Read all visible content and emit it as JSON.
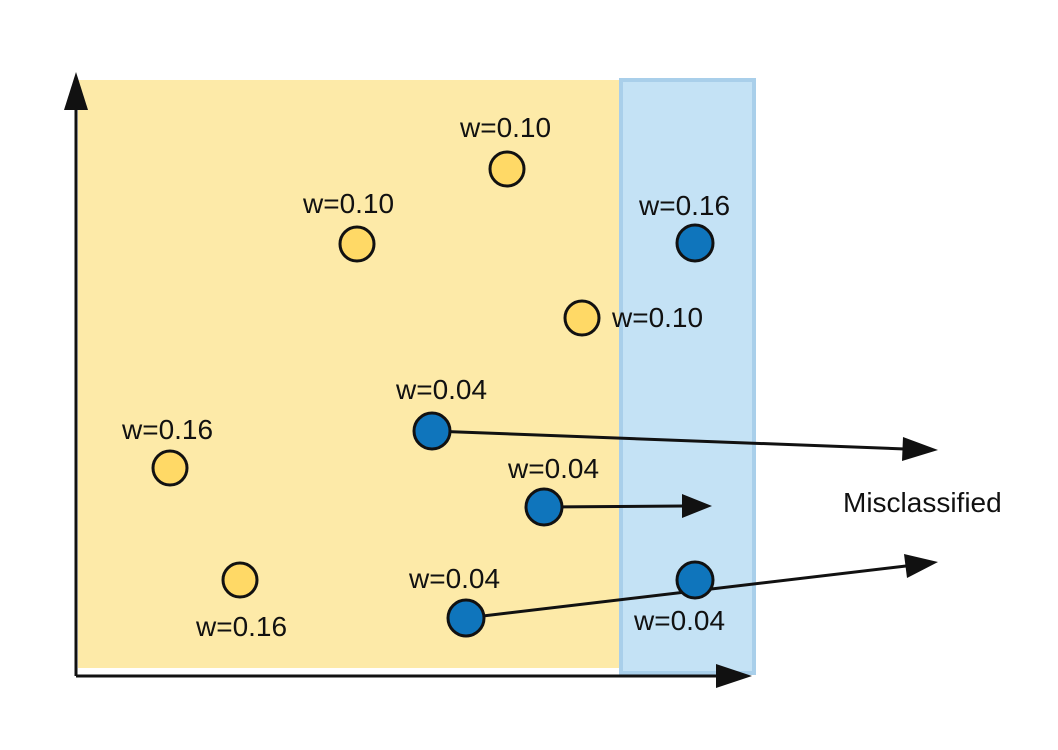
{
  "colors": {
    "yellow_region": "#FDEAA8",
    "blue_region": "#C4E2F5",
    "blue_region_border": "#A9CFEA",
    "yellow_point": "#FFD966",
    "blue_point": "#0F75BC",
    "outline": "#111111"
  },
  "regions": [
    {
      "name": "yellow-class-region",
      "color_key": "yellow_region"
    },
    {
      "name": "blue-class-region",
      "color_key": "blue_region"
    }
  ],
  "points": [
    {
      "cls": "yellow",
      "weight_label": "w=0.10"
    },
    {
      "cls": "yellow",
      "weight_label": "w=0.10"
    },
    {
      "cls": "blue",
      "weight_label": "w=0.16"
    },
    {
      "cls": "yellow",
      "weight_label": "w=0.10"
    },
    {
      "cls": "blue",
      "weight_label": "w=0.04",
      "misclassified": true
    },
    {
      "cls": "yellow",
      "weight_label": "w=0.16"
    },
    {
      "cls": "blue",
      "weight_label": "w=0.04",
      "misclassified": true
    },
    {
      "cls": "yellow",
      "weight_label": "w=0.16"
    },
    {
      "cls": "blue",
      "weight_label": "w=0.04",
      "misclassified": true
    },
    {
      "cls": "blue",
      "weight_label": "w=0.04"
    }
  ],
  "annotation": {
    "text": "Misclassified"
  }
}
